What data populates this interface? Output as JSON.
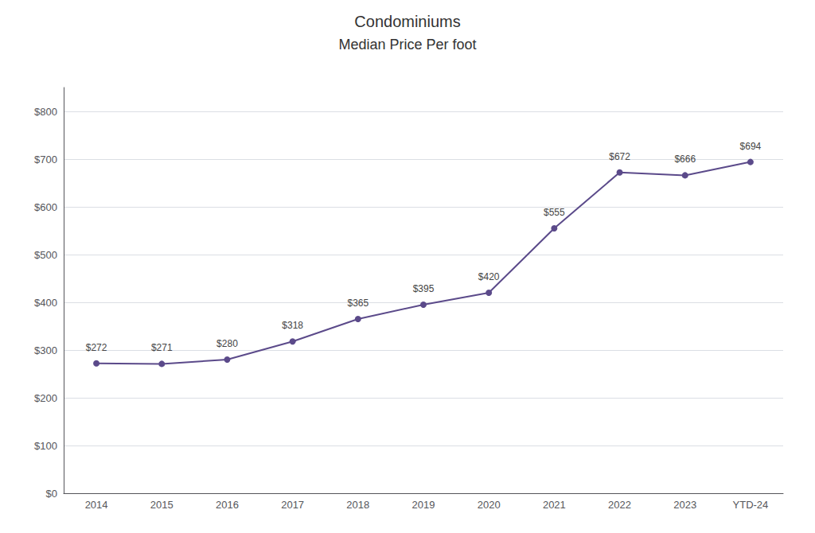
{
  "chart_data": {
    "type": "line",
    "title": "Condominiums",
    "subtitle": "Median Price Per foot",
    "categories": [
      "2014",
      "2015",
      "2016",
      "2017",
      "2018",
      "2019",
      "2020",
      "2021",
      "2022",
      "2023",
      "YTD-24"
    ],
    "values": [
      272,
      271,
      280,
      318,
      365,
      395,
      420,
      555,
      672,
      666,
      694
    ],
    "value_labels": [
      "$272",
      "$271",
      "$280",
      "$318",
      "$365",
      "$395",
      "$420",
      "$555",
      "$672",
      "$666",
      "$694"
    ],
    "data_labels": true,
    "color": "#5b4a8a",
    "marker": "circle",
    "ylim": [
      0,
      850
    ],
    "yticks": [
      {
        "value": 0,
        "label": "$0"
      },
      {
        "value": 100,
        "label": "$100"
      },
      {
        "value": 200,
        "label": "$200"
      },
      {
        "value": 300,
        "label": "$300"
      },
      {
        "value": 400,
        "label": "$400"
      },
      {
        "value": 500,
        "label": "$500"
      },
      {
        "value": 600,
        "label": "$600"
      },
      {
        "value": 700,
        "label": "$700"
      },
      {
        "value": 800,
        "label": "$800"
      }
    ],
    "grid": true
  }
}
